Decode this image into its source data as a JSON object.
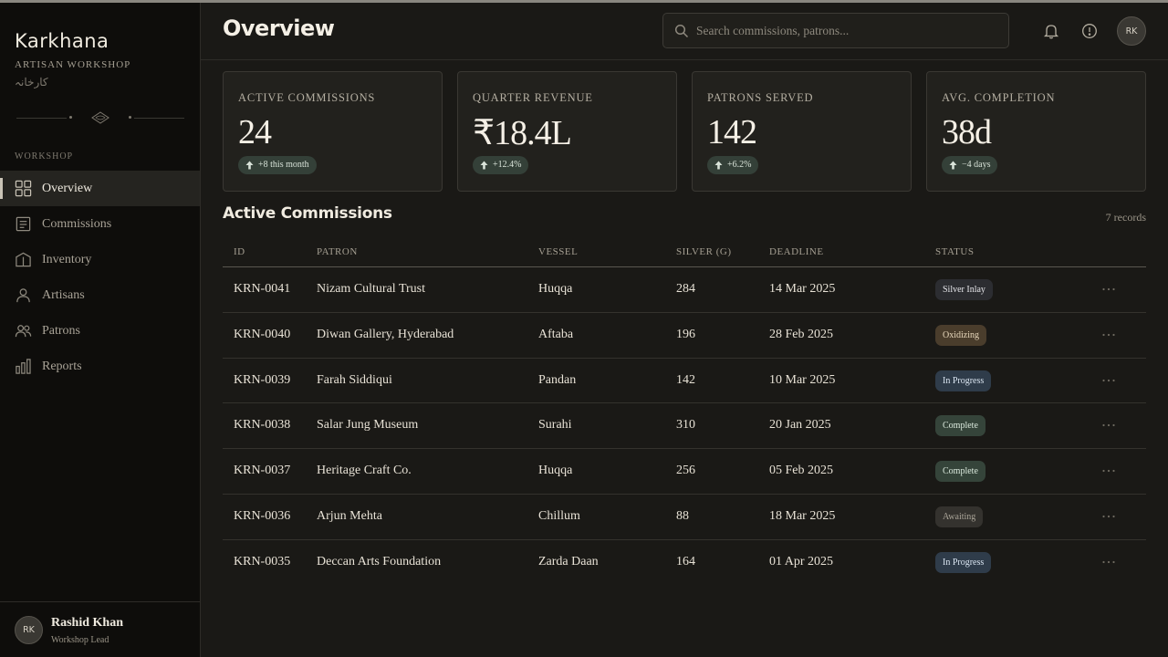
{
  "brand": {
    "name": "Karkhana",
    "subtitle": "ARTISAN WORKSHOP",
    "urdu": "کارخانہ"
  },
  "sidebar": {
    "section_label": "WORKSHOP",
    "items": [
      {
        "label": "Overview",
        "icon": "grid-icon",
        "active": true
      },
      {
        "label": "Commissions",
        "icon": "document-icon",
        "active": false
      },
      {
        "label": "Inventory",
        "icon": "box-icon",
        "active": false
      },
      {
        "label": "Artisans",
        "icon": "person-icon",
        "active": false
      },
      {
        "label": "Patrons",
        "icon": "people-icon",
        "active": false
      },
      {
        "label": "Reports",
        "icon": "bar-chart-icon",
        "active": false
      }
    ],
    "user": {
      "initials": "RK",
      "name": "Rashid Khan",
      "role": "Workshop Lead"
    }
  },
  "header": {
    "title": "Overview",
    "search_placeholder": "Search commissions, patrons...",
    "avatar_initials": "RK"
  },
  "stats": [
    {
      "label": "ACTIVE COMMISSIONS",
      "value": "24",
      "badge": "+8 this month"
    },
    {
      "label": "QUARTER REVENUE",
      "value": "₹18.4L",
      "badge": "+12.4%"
    },
    {
      "label": "PATRONS SERVED",
      "value": "142",
      "badge": "+6.2%"
    },
    {
      "label": "AVG. COMPLETION",
      "value": "38d",
      "badge": "−4 days"
    }
  ],
  "table": {
    "title": "Active Commissions",
    "records": "7 records",
    "columns": {
      "id": "ID",
      "patron": "PATRON",
      "vessel": "VESSEL",
      "silver": "SILVER (G)",
      "deadline": "DEADLINE",
      "status": "STATUS"
    },
    "rows": [
      {
        "id": "KRN-0041",
        "patron": "Nizam Cultural Trust",
        "vessel": "Huqqa",
        "silver": "284",
        "deadline": "14 Mar 2025",
        "status": "Silver Inlay"
      },
      {
        "id": "KRN-0040",
        "patron": "Diwan Gallery, Hyderabad",
        "vessel": "Aftaba",
        "silver": "196",
        "deadline": "28 Feb 2025",
        "status": "Oxidizing"
      },
      {
        "id": "KRN-0039",
        "patron": "Farah Siddiqui",
        "vessel": "Pandan",
        "silver": "142",
        "deadline": "10 Mar 2025",
        "status": "In Progress"
      },
      {
        "id": "KRN-0038",
        "patron": "Salar Jung Museum",
        "vessel": "Surahi",
        "silver": "310",
        "deadline": "20 Jan 2025",
        "status": "Complete"
      },
      {
        "id": "KRN-0037",
        "patron": "Heritage Craft Co.",
        "vessel": "Huqqa",
        "silver": "256",
        "deadline": "05 Feb 2025",
        "status": "Complete"
      },
      {
        "id": "KRN-0036",
        "patron": "Arjun Mehta",
        "vessel": "Chillum",
        "silver": "88",
        "deadline": "18 Mar 2025",
        "status": "Awaiting"
      },
      {
        "id": "KRN-0035",
        "patron": "Deccan Arts Foundation",
        "vessel": "Zarda Daan",
        "silver": "164",
        "deadline": "01 Apr 2025",
        "status": "In Progress"
      }
    ]
  },
  "status_colors": {
    "Silver Inlay": {
      "bg": "#2c2d31",
      "fg": "#e6e6ea"
    },
    "Oxidizing": {
      "bg": "#4a3d2c",
      "fg": "#e8d8bc"
    },
    "In Progress": {
      "bg": "#2f3c4a",
      "fg": "#dbe6f2"
    },
    "Complete": {
      "bg": "#35443a",
      "fg": "#dbe9dd"
    },
    "Awaiting": {
      "bg": "#34322e",
      "fg": "#a9a397"
    }
  },
  "accent": "#c9c3b6"
}
